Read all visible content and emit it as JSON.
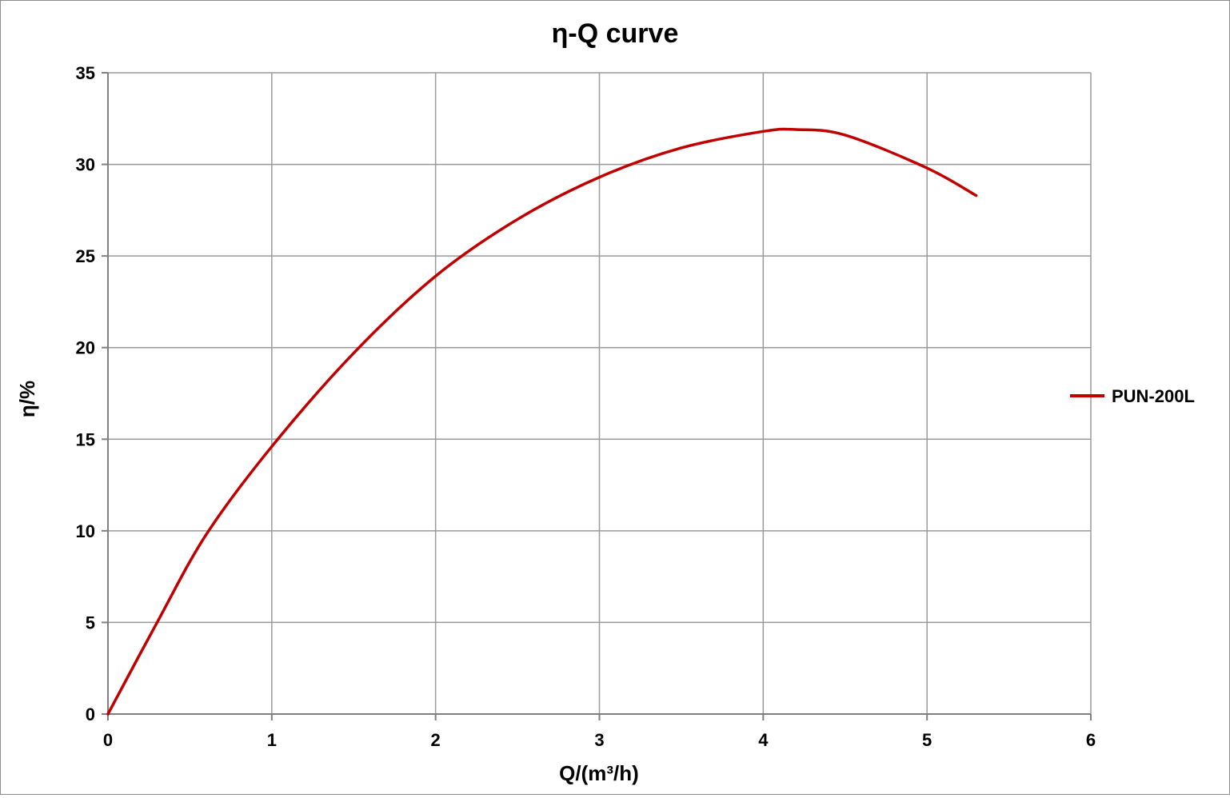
{
  "chart_data": {
    "type": "line",
    "title": "η-Q  curve",
    "xlabel": "Q/(m³/h)",
    "ylabel": "η/%",
    "xlim": [
      0,
      6
    ],
    "ylim": [
      0,
      35
    ],
    "x_ticks": [
      "0",
      "1",
      "2",
      "3",
      "4",
      "5",
      "6"
    ],
    "y_ticks": [
      "0",
      "5",
      "10",
      "15",
      "20",
      "25",
      "30",
      "35"
    ],
    "grid": true,
    "legend_position": "right",
    "series": [
      {
        "name": "PUN-200L",
        "color": "#c00000",
        "x": [
          0,
          0.3,
          0.6,
          1.0,
          1.5,
          2.0,
          2.5,
          3.0,
          3.5,
          4.0,
          4.2,
          4.5,
          5.0,
          5.3
        ],
        "y": [
          0,
          5.0,
          9.8,
          14.6,
          19.7,
          23.9,
          27.0,
          29.3,
          30.9,
          31.8,
          31.9,
          31.6,
          29.8,
          28.3
        ]
      }
    ]
  }
}
